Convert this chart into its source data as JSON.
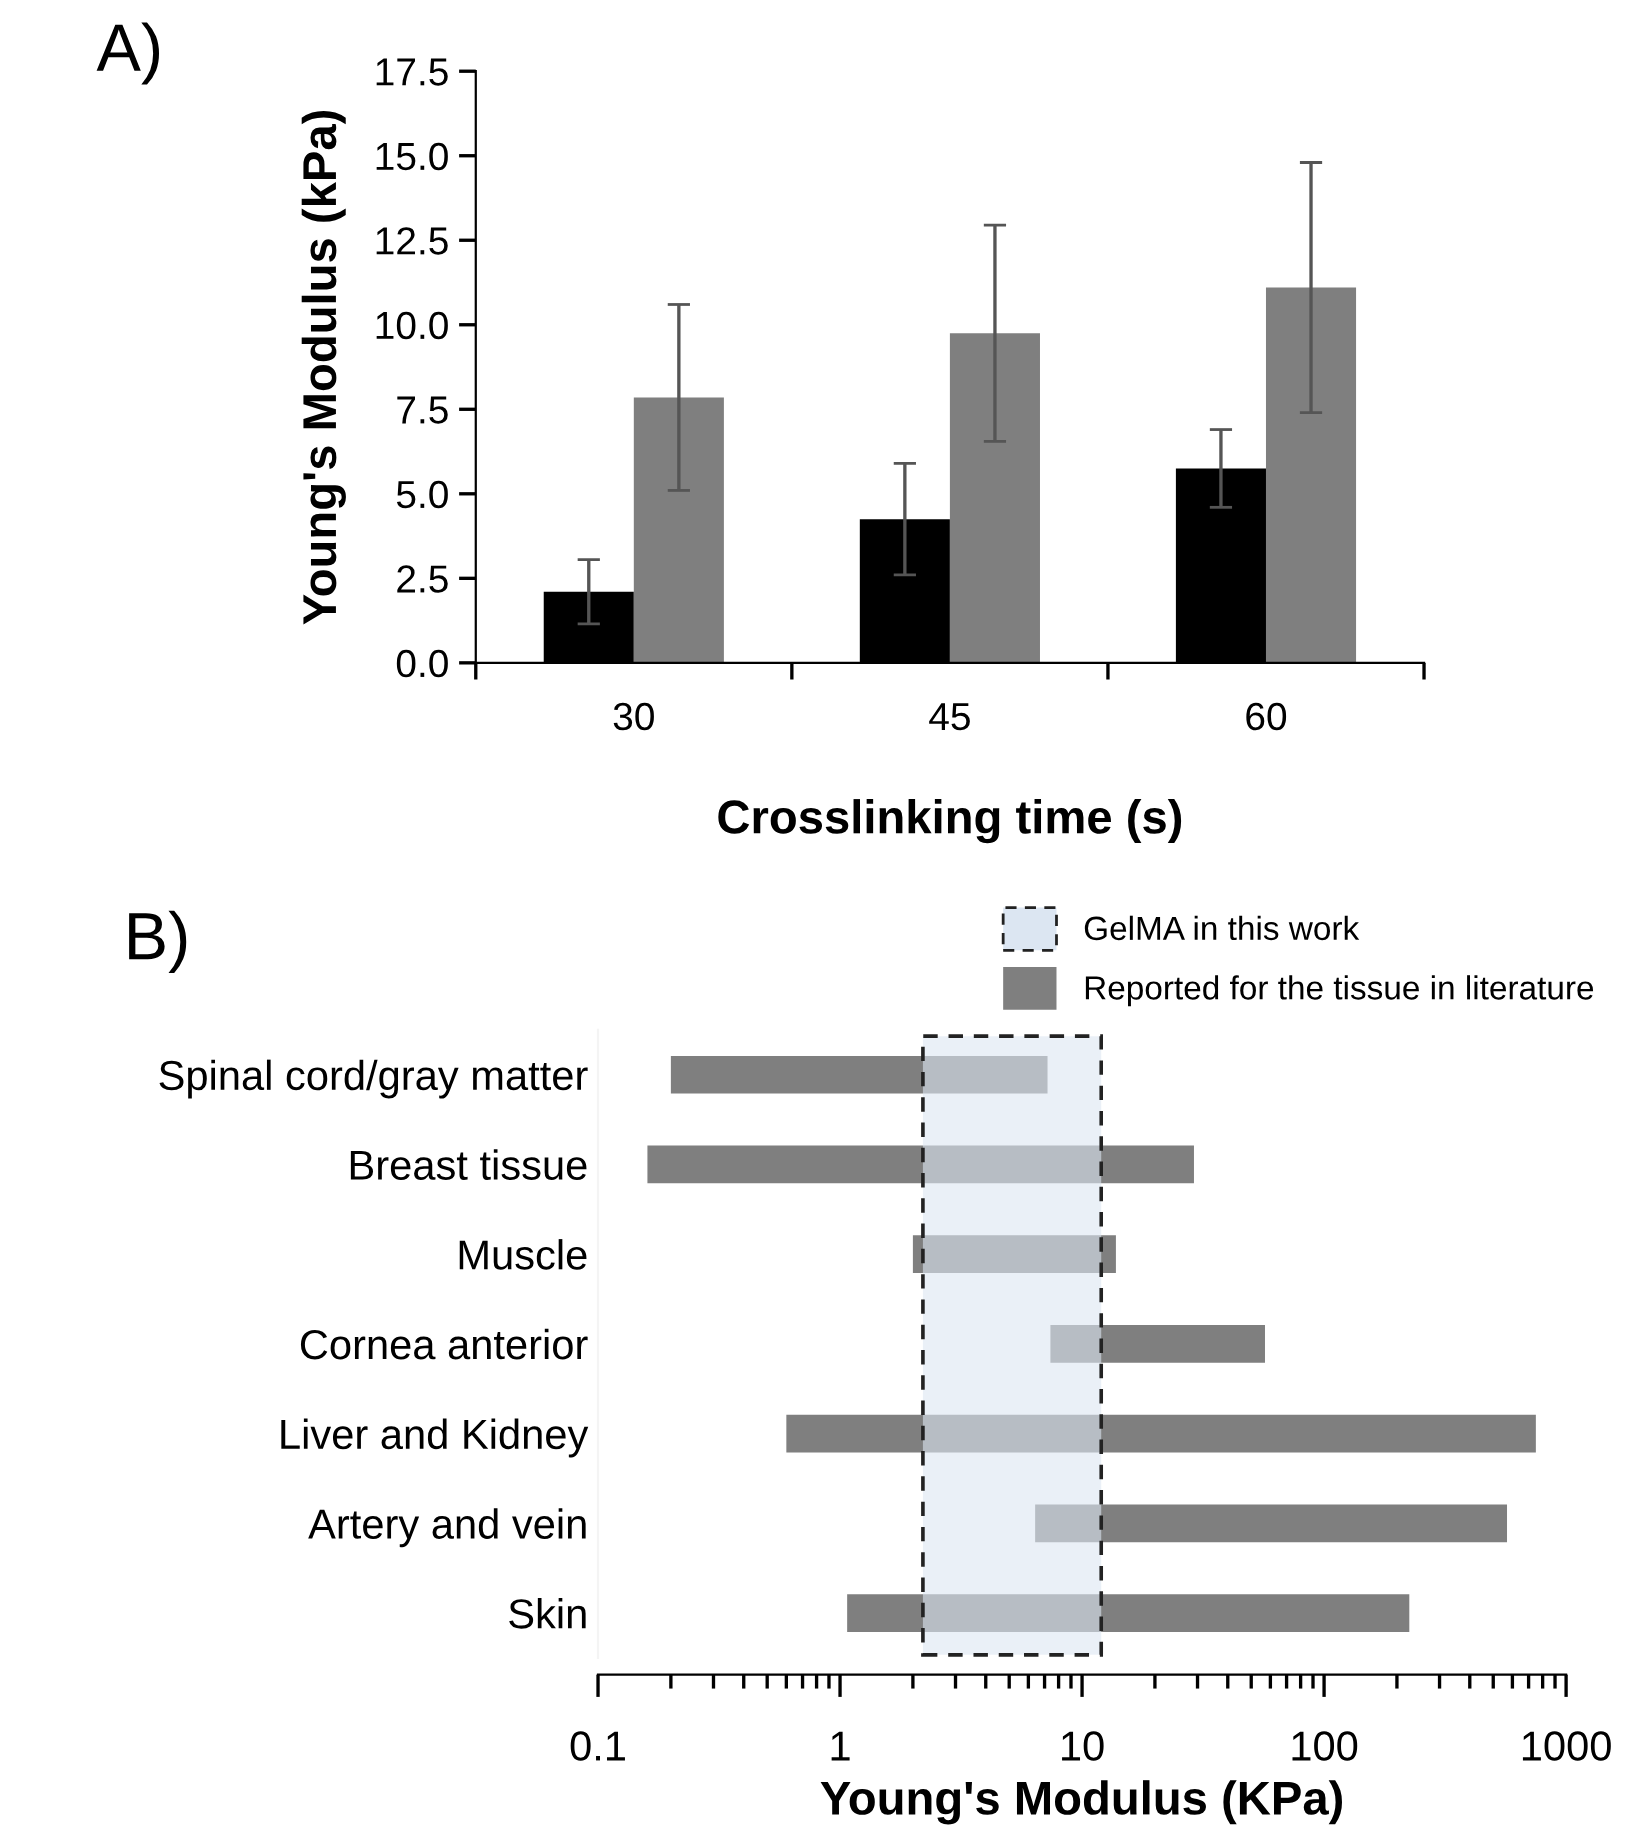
{
  "chart_data": [
    {
      "type": "bar",
      "title": "A)",
      "xlabel": "Crosslinking time (s)",
      "ylabel": "Young's Modulus (kPa)",
      "categories": [
        "30",
        "45",
        "60"
      ],
      "series": [
        {
          "color": "#000000",
          "values": [
            2.1,
            4.25,
            5.75
          ],
          "errors": [
            0.95,
            1.65,
            1.15
          ]
        },
        {
          "color": "#7f7f7f",
          "values": [
            7.85,
            9.75,
            11.1
          ],
          "errors": [
            2.75,
            3.2,
            3.7
          ]
        }
      ],
      "ylim": [
        0,
        17.5
      ],
      "yticks": [
        {
          "value": 0,
          "label": "0.0"
        },
        2.5,
        {
          "value": 5,
          "label": "5.0"
        },
        7.5,
        {
          "value": 10,
          "label": "10.0"
        },
        12.5,
        {
          "value": 15,
          "label": "15.0"
        },
        17.5
      ],
      "grid": false,
      "legend": false
    },
    {
      "type": "bar",
      "title": "B)",
      "xlabel": "Young's Modulus (KPa)",
      "orientation": "horizontal",
      "log": "x",
      "categories": [
        "Spinal cord/gray matter",
        "Breast tissue",
        "Muscle",
        "Cornea anterior",
        "Liver and Kidney",
        "Artery and vein",
        "Skin"
      ],
      "series": [
        {
          "name": "Reported for the tissue in literature",
          "color": "#7f7f7f",
          "base": [
            0.2,
            0.16,
            2.0,
            7.4,
            0.6,
            6.4,
            1.07
          ],
          "values": [
            7.0,
            28.84,
            11.8,
            49.6,
            749.4,
            563.6,
            223.93
          ]
        }
      ],
      "bands": [
        {
          "axis": "x",
          "from": 2.2,
          "to": 12,
          "label": "GelMA in this work",
          "color": "#dce6f2"
        }
      ],
      "xlim": [
        0.1,
        1000
      ],
      "xticks": [
        0.1,
        1,
        10,
        100,
        1000
      ],
      "grid": false,
      "legend": "top right"
    }
  ]
}
